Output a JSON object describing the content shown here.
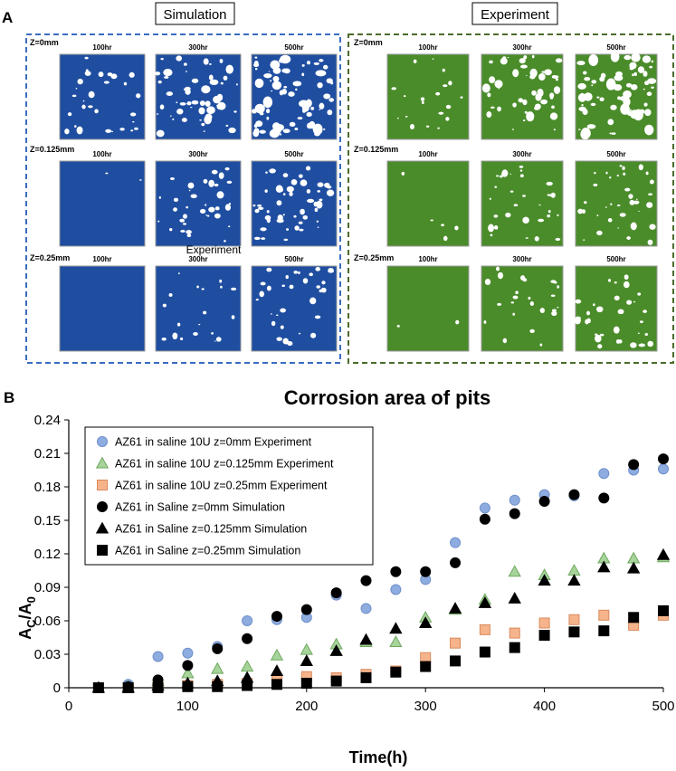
{
  "panel_a": {
    "letter": "A",
    "simulation": {
      "header": "Simulation",
      "color": "#1f4ea1",
      "frame_color": "#3a6bc0",
      "rows": [
        {
          "z_label": "Z=0mm",
          "times": [
            "100hr",
            "300hr",
            "500hr"
          ],
          "pit_density": [
            0.18,
            0.35,
            0.45
          ]
        },
        {
          "z_label": "Z=0.125mm",
          "times": [
            "100hr",
            "300hr",
            "500hr"
          ],
          "pit_density": [
            0.01,
            0.22,
            0.3
          ]
        },
        {
          "z_label": "Z=0.25mm",
          "times": [
            "100hr",
            "300hr",
            "500hr"
          ],
          "pit_density": [
            0.0,
            0.12,
            0.2
          ]
        }
      ],
      "overlay_label": "Experiment"
    },
    "experiment": {
      "header": "Experiment",
      "color": "#4a8c2a",
      "frame_color": "#4b6b2a",
      "rows": [
        {
          "z_label": "Z=0mm",
          "times": [
            "100hr",
            "300hr",
            "500hr"
          ],
          "pit_density": [
            0.12,
            0.3,
            0.4
          ]
        },
        {
          "z_label": "Z=0.125mm",
          "times": [
            "100hr",
            "300hr",
            "500hr"
          ],
          "pit_density": [
            0.03,
            0.2,
            0.22
          ]
        },
        {
          "z_label": "Z=0.25mm",
          "times": [
            "100hr",
            "300hr",
            "500hr"
          ],
          "pit_density": [
            0.01,
            0.15,
            0.2
          ]
        }
      ]
    }
  },
  "panel_b": {
    "letter": "B"
  },
  "chart_data": {
    "type": "scatter",
    "title": "Corrosion area of pits",
    "xlabel": "Time(h)",
    "ylabel_main": "A",
    "ylabel_sub1": "C",
    "ylabel_mid": "/A",
    "ylabel_sub2": "0",
    "xlim": [
      0,
      500
    ],
    "ylim": [
      0,
      0.24
    ],
    "xticks": [
      0,
      100,
      200,
      300,
      400,
      500
    ],
    "yticks": [
      0,
      0.03,
      0.06,
      0.09,
      0.12,
      0.15,
      0.18,
      0.21,
      0.24
    ],
    "ytick_labels": [
      "0",
      "0.03",
      "0.06",
      "0.09",
      "0.12",
      "0.15",
      "0.18",
      "0.21",
      "0.24"
    ],
    "legend_position": "top-left",
    "x": [
      25,
      50,
      75,
      100,
      125,
      150,
      175,
      200,
      225,
      250,
      275,
      300,
      325,
      350,
      375,
      400,
      425,
      450,
      475,
      500
    ],
    "series": [
      {
        "name": "AZ61 in saline 10U z=0mm Experiment",
        "marker": "circle",
        "fill": "#8eacdf",
        "stroke": "#6d8fcb",
        "values": [
          0,
          0.003,
          0.028,
          0.031,
          0.037,
          0.06,
          0.061,
          0.063,
          0.083,
          0.071,
          0.088,
          0.097,
          0.13,
          0.161,
          0.168,
          0.173,
          0.172,
          0.192,
          0.195,
          0.196
        ]
      },
      {
        "name": "AZ61 in saline 10U z=0.125mm Experiment",
        "marker": "triangle",
        "fill": "#a6d49a",
        "stroke": "#6fa85f",
        "values": [
          0,
          0.001,
          0.006,
          0.013,
          0.017,
          0.019,
          0.029,
          0.034,
          0.039,
          0.041,
          0.041,
          0.063,
          0.07,
          0.079,
          0.104,
          0.101,
          0.105,
          0.116,
          0.116,
          0.117
        ]
      },
      {
        "name": "AZ61 in saline 10U z=0.25mm Experiment",
        "marker": "square",
        "fill": "#f6b48c",
        "stroke": "#d98a5c",
        "values": [
          0,
          0,
          0.001,
          0.002,
          0.003,
          0.004,
          0.007,
          0.01,
          0.009,
          0.012,
          0.015,
          0.027,
          0.04,
          0.052,
          0.049,
          0.058,
          0.061,
          0.065,
          0.056,
          0.065
        ]
      },
      {
        "name": "AZ61 in Saline z=0mm Simulation",
        "marker": "circle",
        "fill": "#000000",
        "stroke": "#000000",
        "values": [
          0,
          0.001,
          0.007,
          0.02,
          0.035,
          0.044,
          0.064,
          0.07,
          0.085,
          0.096,
          0.104,
          0.104,
          0.112,
          0.151,
          0.156,
          0.167,
          0.173,
          0.17,
          0.2,
          0.205
        ]
      },
      {
        "name": "AZ61 in Saline z=0.125mm Simulation",
        "marker": "triangle",
        "fill": "#000000",
        "stroke": "#000000",
        "values": [
          0,
          0,
          0.002,
          0.004,
          0.006,
          0.009,
          0.015,
          0.024,
          0.033,
          0.043,
          0.053,
          0.058,
          0.071,
          0.076,
          0.08,
          0.096,
          0.096,
          0.108,
          0.107,
          0.119
        ]
      },
      {
        "name": "AZ61 in Saline z=0.25mm Simulation",
        "marker": "square",
        "fill": "#000000",
        "stroke": "#000000",
        "values": [
          0,
          0,
          0,
          0.001,
          0.001,
          0.002,
          0.003,
          0.004,
          0.006,
          0.009,
          0.014,
          0.019,
          0.024,
          0.032,
          0.036,
          0.047,
          0.05,
          0.051,
          0.063,
          0.069
        ]
      }
    ]
  }
}
